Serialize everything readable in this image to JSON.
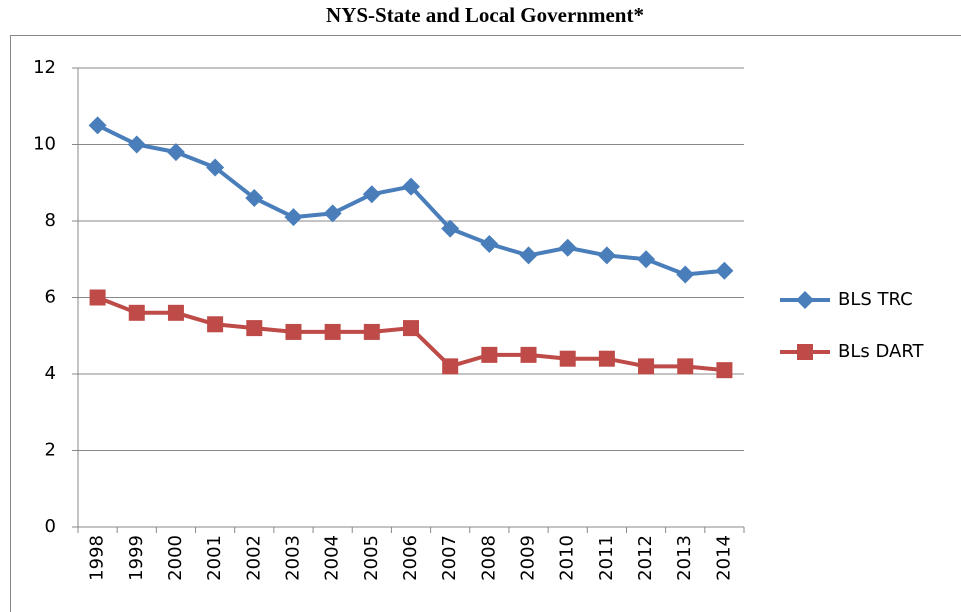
{
  "chart_data": {
    "type": "line",
    "title": "NYS-State and Local Government*",
    "categories": [
      "1998",
      "1999",
      "2000",
      "2001",
      "2002",
      "2003",
      "2004",
      "2005",
      "2006",
      "2007",
      "2008",
      "2009",
      "2010",
      "2011",
      "2012",
      "2013",
      "2014"
    ],
    "series": [
      {
        "name": "BLS TRC",
        "color": "#4a7ebb",
        "marker": "diamond",
        "values": [
          10.5,
          10.0,
          9.8,
          9.4,
          8.6,
          8.1,
          8.2,
          8.7,
          8.9,
          7.8,
          7.4,
          7.1,
          7.3,
          7.1,
          7.0,
          6.6,
          6.7
        ]
      },
      {
        "name": "BLs DART",
        "color": "#be4b48",
        "marker": "square",
        "values": [
          6.0,
          5.6,
          5.6,
          5.3,
          5.2,
          5.1,
          5.1,
          5.1,
          5.2,
          4.2,
          4.5,
          4.5,
          4.4,
          4.4,
          4.2,
          4.2,
          4.1
        ]
      }
    ],
    "ylim": [
      0,
      12
    ],
    "yticks": [
      0,
      2,
      4,
      6,
      8,
      10,
      12
    ],
    "grid": true,
    "legend": "right"
  }
}
